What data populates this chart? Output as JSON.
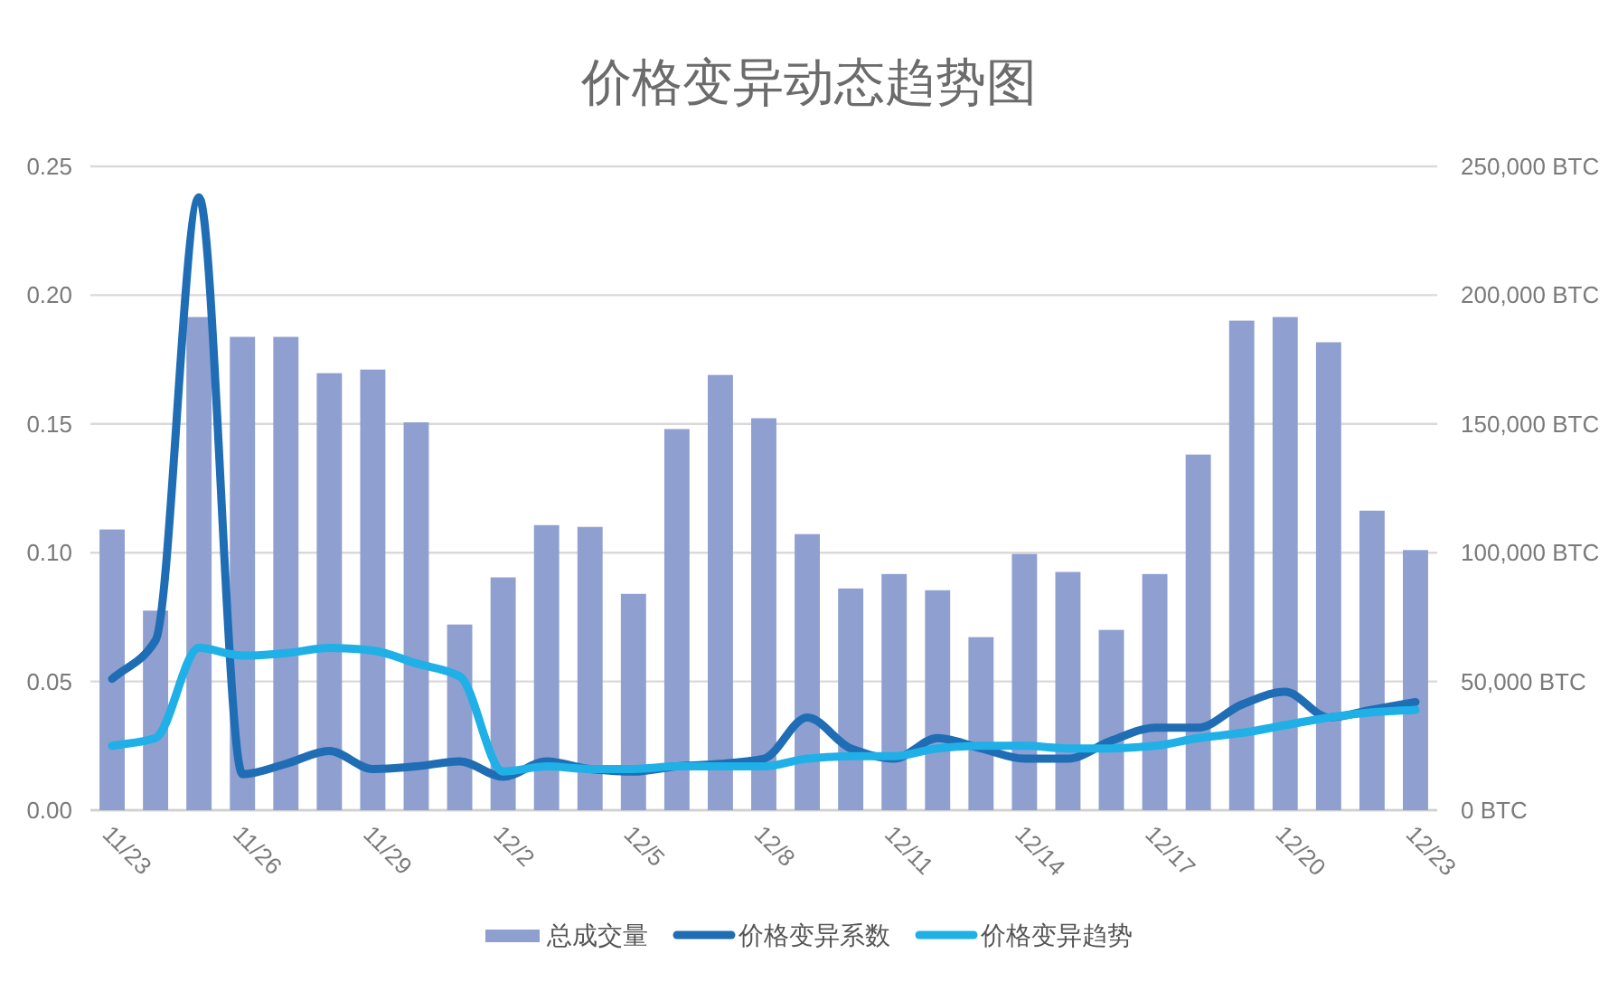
{
  "chart_data": {
    "type": "bar",
    "title": "价格变异动态趋势图",
    "categories": [
      "11/23",
      null,
      null,
      "11/26",
      null,
      null,
      "11/29",
      null,
      null,
      "12/2",
      null,
      null,
      "12/5",
      null,
      null,
      "12/8",
      null,
      null,
      "12/11",
      null,
      null,
      "12/14",
      null,
      null,
      "12/17",
      null,
      null,
      "12/20",
      null,
      null,
      "12/23"
    ],
    "series": [
      {
        "name": "总成交量",
        "axis": "y2",
        "color": "#8e9fd0",
        "values": [
          109000,
          77500,
          191500,
          183800,
          183800,
          169700,
          171100,
          150600,
          72100,
          90400,
          110700,
          110000,
          84000,
          148000,
          169000,
          152200,
          107200,
          86100,
          91700,
          85400,
          67200,
          99500,
          92500,
          70000,
          91700,
          138100,
          190100,
          191500,
          181700,
          116300,
          101000
        ]
      },
      {
        "name": "价格变异系数",
        "type": "line",
        "color": "#1f6db4",
        "values": [
          0.051,
          0.066,
          0.238,
          0.014,
          0.018,
          0.023,
          0.016,
          0.017,
          0.019,
          0.013,
          0.019,
          0.016,
          0.015,
          0.017,
          0.018,
          0.02,
          0.036,
          0.024,
          0.02,
          0.028,
          0.024,
          0.02,
          0.02,
          0.027,
          0.032,
          0.032,
          0.041,
          0.046,
          0.036,
          0.039,
          0.042
        ]
      },
      {
        "name": "价格变异趋势",
        "type": "line",
        "color": "#1eb0e6",
        "values": [
          0.025,
          0.028,
          0.063,
          0.06,
          0.061,
          0.063,
          0.062,
          0.057,
          0.052,
          0.015,
          0.017,
          0.016,
          0.016,
          0.017,
          0.017,
          0.017,
          0.02,
          0.021,
          0.021,
          0.024,
          0.025,
          0.025,
          0.024,
          0.024,
          0.025,
          0.028,
          0.03,
          0.033,
          0.036,
          0.038,
          0.039
        ]
      }
    ],
    "ylim": [
      0,
      0.25
    ],
    "yticks": [
      {
        "value": 0,
        "label": "0.00"
      },
      {
        "value": 0.05,
        "label": "0.05"
      },
      {
        "value": 0.1,
        "label": "0.10"
      },
      {
        "value": 0.15,
        "label": "0.15"
      },
      {
        "value": 0.2,
        "label": "0.20"
      },
      {
        "value": 0.25,
        "label": "0.25"
      }
    ],
    "y2lim": [
      0,
      250000
    ],
    "y2ticks": [
      {
        "value": 0,
        "label": "0 BTC"
      },
      {
        "value": 50000,
        "label": "50,000 BTC"
      },
      {
        "value": 100000,
        "label": "100,000 BTC"
      },
      {
        "value": 150000,
        "label": "150,000 BTC"
      },
      {
        "value": 200000,
        "label": "200,000 BTC"
      },
      {
        "value": 250000,
        "label": "250,000 BTC"
      }
    ],
    "grid": "y",
    "legend": "bottom"
  }
}
